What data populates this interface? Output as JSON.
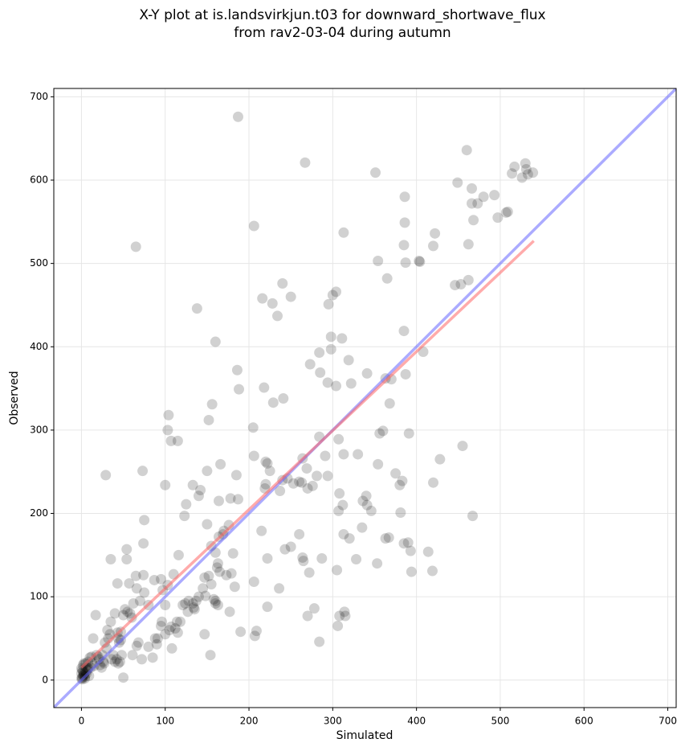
{
  "chart_data": {
    "type": "scatter",
    "title": "X-Y plot at is.landsvirkjun.t03 for downward_shortwave_flux\nfrom rav2-03-04 during autumn",
    "xlabel": "Simulated",
    "ylabel": "Observed",
    "xlim": [
      -33,
      710
    ],
    "ylim": [
      -33,
      710
    ],
    "xticks": [
      0,
      100,
      200,
      300,
      400,
      500,
      600,
      700
    ],
    "yticks": [
      0,
      100,
      200,
      300,
      400,
      500,
      600,
      700
    ],
    "grid": true,
    "color": "#000000",
    "x": [
      187,
      267,
      65,
      206,
      138,
      160,
      351,
      313,
      460,
      449,
      466,
      466,
      473,
      480,
      468,
      493,
      497,
      507,
      509,
      514,
      517,
      526,
      530,
      531,
      533,
      539,
      422,
      420,
      386,
      386,
      385,
      387,
      403,
      404,
      354,
      365,
      446,
      453,
      462,
      462,
      240,
      216,
      228,
      234,
      250,
      304,
      300,
      295,
      298,
      311,
      298,
      284,
      319,
      385,
      408,
      186,
      188,
      218,
      229,
      241,
      273,
      285,
      294,
      304,
      322,
      341,
      363,
      368,
      370,
      387,
      391,
      356,
      360,
      205,
      104,
      103,
      107,
      115,
      156,
      152,
      29,
      73,
      100,
      185,
      166,
      187,
      178,
      206,
      220,
      222,
      225,
      220,
      219,
      246,
      240,
      237,
      253,
      260,
      263,
      264,
      269,
      270,
      276,
      281,
      284,
      291,
      294,
      307,
      308,
      307,
      312,
      313,
      330,
      336,
      340,
      341,
      346,
      354,
      375,
      380,
      383,
      381,
      363,
      367,
      353,
      335,
      328,
      320,
      313,
      314,
      306,
      308,
      265,
      260,
      243,
      250,
      215,
      222,
      206,
      209,
      207,
      190,
      222,
      236,
      264,
      270,
      272,
      278,
      284,
      287,
      305,
      315,
      390,
      393,
      394,
      414,
      419,
      420,
      428,
      455,
      467,
      385,
      123,
      125,
      140,
      142,
      133,
      164,
      169,
      170,
      155,
      160,
      163,
      176,
      181,
      150,
      150,
      164,
      75,
      74,
      54,
      54,
      35,
      43,
      57,
      65,
      74,
      87,
      95,
      97,
      103,
      110,
      116,
      124,
      133,
      134,
      127,
      145,
      147,
      152,
      148,
      155,
      158,
      165,
      162,
      173,
      179,
      183,
      177,
      160,
      163,
      147,
      154,
      160,
      137,
      121,
      114,
      107,
      100,
      96,
      95,
      91,
      88,
      85,
      80,
      72,
      68,
      61,
      66,
      50,
      48,
      47,
      43,
      40,
      45,
      35,
      34,
      31,
      28,
      27,
      24,
      20,
      17,
      14,
      12,
      10,
      8,
      6,
      5,
      3,
      2,
      1,
      0,
      1,
      2,
      3,
      4,
      0,
      1,
      2,
      5,
      7,
      9,
      15,
      18,
      22,
      26,
      30,
      38,
      40,
      42,
      44,
      47,
      50,
      52,
      55,
      58,
      60,
      62,
      66,
      70,
      75,
      80,
      90,
      100,
      105,
      108,
      112,
      115,
      118,
      128,
      135,
      140,
      44,
      46,
      36,
      32,
      25,
      21,
      13,
      11,
      4,
      6,
      8,
      0,
      3
    ],
    "values": [
      676,
      621,
      520,
      545,
      446,
      406,
      609,
      537,
      636,
      597,
      590,
      572,
      572,
      580,
      552,
      582,
      555,
      561,
      562,
      608,
      616,
      603,
      620,
      613,
      607,
      609,
      536,
      521,
      580,
      549,
      522,
      501,
      503,
      502,
      503,
      482,
      474,
      475,
      480,
      523,
      476,
      458,
      452,
      437,
      460,
      466,
      462,
      451,
      412,
      410,
      397,
      393,
      384,
      419,
      394,
      372,
      349,
      351,
      333,
      338,
      379,
      369,
      357,
      353,
      356,
      368,
      362,
      332,
      361,
      367,
      296,
      296,
      299,
      303,
      318,
      300,
      287,
      287,
      331,
      312,
      246,
      251,
      234,
      246,
      259,
      217,
      218,
      269,
      262,
      260,
      251,
      235,
      230,
      242,
      240,
      227,
      236,
      238,
      237,
      266,
      254,
      230,
      233,
      245,
      292,
      269,
      245,
      289,
      224,
      203,
      210,
      271,
      271,
      215,
      221,
      210,
      203,
      259,
      248,
      234,
      239,
      201,
      170,
      171,
      140,
      183,
      145,
      170,
      175,
      82,
      65,
      77,
      143,
      175,
      157,
      160,
      179,
      146,
      118,
      59,
      53,
      58,
      88,
      110,
      147,
      77,
      129,
      86,
      46,
      146,
      132,
      77,
      165,
      155,
      130,
      154,
      131,
      237,
      265,
      281,
      197,
      164,
      197,
      211,
      221,
      228,
      234,
      215,
      175,
      179,
      161,
      153,
      140,
      186,
      152,
      187,
      251,
      172,
      192,
      164,
      145,
      157,
      145,
      116,
      116,
      125,
      126,
      120,
      121,
      108,
      114,
      127,
      150,
      92,
      92,
      87,
      82,
      110,
      123,
      125,
      101,
      115,
      97,
      130,
      135,
      126,
      128,
      112,
      82,
      92,
      90,
      55,
      30,
      95,
      95,
      90,
      70,
      64,
      90,
      70,
      65,
      50,
      50,
      27,
      40,
      25,
      45,
      30,
      41,
      3,
      30,
      48,
      57,
      80,
      45,
      70,
      55,
      60,
      45,
      20,
      15,
      28,
      78,
      50,
      28,
      27,
      22,
      15,
      10,
      8,
      5,
      3,
      2,
      12,
      18,
      6,
      4,
      8,
      1,
      10,
      20,
      12,
      5,
      17,
      30,
      18,
      22,
      38,
      30,
      22,
      25,
      50,
      58,
      78,
      85,
      82,
      80,
      75,
      92,
      110,
      95,
      105,
      90,
      43,
      55,
      60,
      38,
      62,
      57,
      70,
      95,
      85,
      100,
      20,
      22,
      25,
      50,
      30,
      25,
      20,
      15,
      2,
      8,
      14,
      14,
      20
    ],
    "lines": [
      {
        "color": "#6666ff",
        "x": [
          -33,
          710
        ],
        "values": [
          -33,
          710
        ]
      },
      {
        "color": "#ff6666",
        "x": [
          0,
          540
        ],
        "values": [
          15,
          527
        ]
      }
    ]
  }
}
